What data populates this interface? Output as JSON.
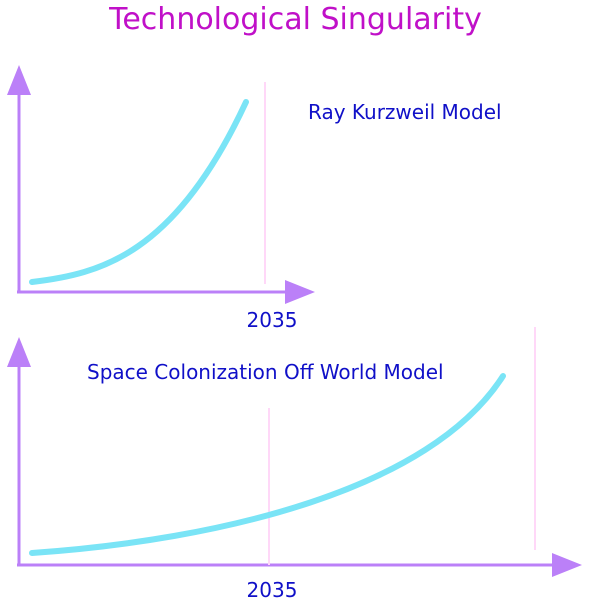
{
  "title": "Technological Singularity",
  "colors": {
    "title": "#c010c8",
    "axis": "#bb80f8",
    "curve": "#7ae4f6",
    "marker": "#ffd8f8",
    "text": "#1010c8"
  },
  "panels": [
    {
      "label": "Ray Kurzweil Model",
      "x_tick_label": "2035"
    },
    {
      "label": "Space Colonization Off World Model",
      "x_tick_label": "2035"
    }
  ]
}
